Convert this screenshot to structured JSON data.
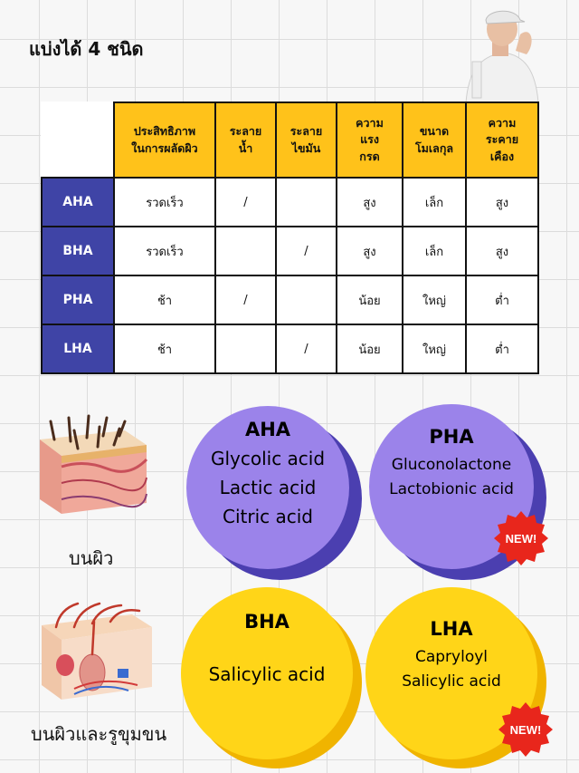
{
  "title": "แบ่งได้ 4 ชนิด",
  "table": {
    "headers": [
      "ประสิทธิภาพ\nในการผลัดผิว",
      "ระลาย\nน้ำ",
      "ระลาย\nไขมัน",
      "ความ\nแรง\nกรด",
      "ขนาด\nโมเลกุล",
      "ความ\nระคาย\nเคือง"
    ],
    "rows": [
      {
        "name": "AHA",
        "cells": [
          "รวดเร็ว",
          "/",
          "",
          "สูง",
          "เล็ก",
          "สูง"
        ]
      },
      {
        "name": "BHA",
        "cells": [
          "รวดเร็ว",
          "",
          "/",
          "สูง",
          "เล็ก",
          "สูง"
        ]
      },
      {
        "name": "PHA",
        "cells": [
          "ช้า",
          "/",
          "",
          "น้อย",
          "ใหญ่",
          "ต่ำ"
        ]
      },
      {
        "name": "LHA",
        "cells": [
          "ช้า",
          "",
          "/",
          "น้อย",
          "ใหญ่",
          "ต่ำ"
        ]
      }
    ]
  },
  "cards": {
    "aha": {
      "name": "AHA",
      "lines": [
        "Glycolic acid",
        "Lactic acid",
        "Citric acid"
      ]
    },
    "pha": {
      "name": "PHA",
      "lines": [
        "Gluconolactone",
        "Lactobionic acid"
      ],
      "badge": "NEW!"
    },
    "bha": {
      "name": "BHA",
      "lines": [
        "Salicylic acid"
      ]
    },
    "lha": {
      "name": "LHA",
      "lines": [
        "Capryloyl",
        "Salicylic acid"
      ],
      "badge": "NEW!"
    }
  },
  "labels": {
    "surface": "บนผิว",
    "pores": "บนผิวและรูขุมขน"
  },
  "colors": {
    "header_yellow": "#ffc21a",
    "row_navy": "#3f44a6",
    "circle_purple": "#9b83ea",
    "circle_yellow": "#ffd518",
    "badge_red": "#e8261c"
  },
  "icons": [
    "person-icon",
    "skin-surface-icon",
    "skin-pore-icon",
    "new-badge-icon"
  ]
}
